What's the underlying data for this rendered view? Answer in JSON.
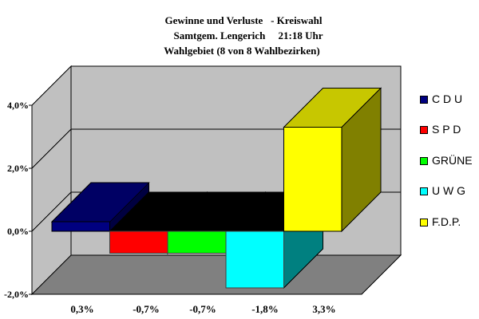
{
  "title": {
    "line1": "Gewinne und Verluste   - Kreiswahl",
    "line2": "Samtgem. Lengerich     21:18 Uhr",
    "line3": "Wahlgebiet (8 von 8 Wahlbezirken)"
  },
  "y_axis": {
    "ticks": [
      "4,0%",
      "2,0%",
      "0,0%",
      "-2,0%"
    ]
  },
  "x_labels": [
    "0,3%",
    "-0,7%",
    "-0,7%",
    "-1,8%",
    "3,3%"
  ],
  "legend": {
    "items": [
      {
        "label": "C D U",
        "color": "#000080"
      },
      {
        "label": "S P D",
        "color": "#ff0000"
      },
      {
        "label": "GRÜNE",
        "color": "#00ff00"
      },
      {
        "label": "U W G",
        "color": "#00ffff"
      },
      {
        "label": "F.D.P.",
        "color": "#ffff00"
      }
    ]
  },
  "colors": {
    "wall": "#c0c0c0",
    "floor": "#808080",
    "axis_line": "#000000"
  },
  "chart_data": {
    "type": "bar",
    "subtype": "3d-column",
    "title": "Gewinne und Verluste - Kreiswahl Samtgem. Lengerich 21:18 Uhr Wahlgebiet (8 von 8 Wahlbezirken)",
    "categories": [
      "C D U",
      "S P D",
      "GRÜNE",
      "U W G",
      "F.D.P."
    ],
    "values": [
      0.3,
      -0.7,
      -0.7,
      -1.8,
      3.3
    ],
    "value_labels": [
      "0,3%",
      "-0,7%",
      "-0,7%",
      "-1,8%",
      "3,3%"
    ],
    "colors": [
      "#000080",
      "#ff0000",
      "#00ff00",
      "#00ffff",
      "#ffff00"
    ],
    "xlabel": "",
    "ylabel": "",
    "ylim": [
      -2.0,
      4.0
    ],
    "yticks": [
      -2.0,
      0.0,
      2.0,
      4.0
    ],
    "unit": "%",
    "grid": true,
    "legend_position": "right"
  }
}
